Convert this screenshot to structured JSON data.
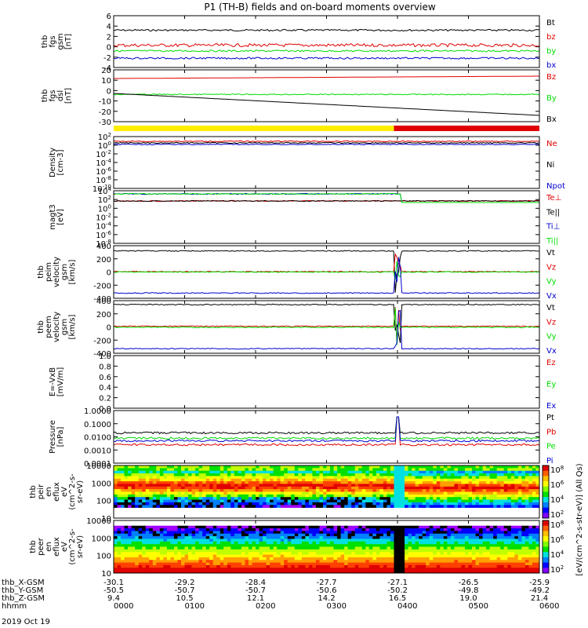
{
  "title": "P1 (TH-B) fields and on-board moments overview",
  "colors": {
    "black": "#000000",
    "red": "#e00000",
    "green": "#00dd00",
    "blue": "#0000cc",
    "yellow": "#ffee00",
    "cyan": "#00c8c8",
    "white": "#ffffff"
  },
  "colorbar": {
    "label": "[eV/(cm^2-s-str-eV)] (All Qs)",
    "ticks_top": [
      "10^8",
      "10^6",
      "10^4",
      "10^2"
    ],
    "ticks_bottom": [
      "10^8",
      "10^6",
      "10^4",
      "10^2"
    ]
  },
  "mode_bar": {
    "yellow_until_hour": 3.95
  },
  "chart_data": [
    {
      "type": "line",
      "id": "fgs",
      "ylabel": [
        "thb",
        "fgs",
        "gsm",
        "[nT]"
      ],
      "yticks": [
        "6",
        "4",
        "2",
        "0",
        "-2",
        "-4"
      ],
      "ylim": [
        -4,
        6
      ],
      "series": [
        {
          "name": "Bt",
          "color": "#000000",
          "level": 3.2
        },
        {
          "name": "bz",
          "color": "#e00000",
          "level": 0.3
        },
        {
          "name": "by",
          "color": "#00dd00",
          "level": -0.8
        },
        {
          "name": "bx",
          "color": "#0000cc",
          "level": -2.2
        }
      ]
    },
    {
      "type": "line",
      "id": "fgs-dsl",
      "ylabel": [
        "thb",
        "fgs",
        "dsl",
        "[nT]"
      ],
      "yticks": [
        "20",
        "10",
        "0",
        "-10",
        "-20",
        "-30"
      ],
      "ylim": [
        -35,
        22
      ],
      "series": [
        {
          "name": "Bz",
          "color": "#e00000",
          "level": 15
        },
        {
          "name": "By",
          "color": "#00dd00",
          "level": -5
        },
        {
          "name": "Bx",
          "color": "#000000",
          "level": -13
        }
      ]
    },
    {
      "type": "line",
      "id": "density",
      "ylabel": [
        "Density",
        "[cm-3]"
      ],
      "yticks": [
        "10^2",
        "10^0",
        "10^-2",
        "10^-4",
        "10^-6",
        "10^-8",
        "10^-10"
      ],
      "log": true,
      "series": [
        {
          "name": "Ne",
          "color": "#e00000"
        },
        {
          "name": "Ni",
          "color": "#000000"
        },
        {
          "name": "Npot",
          "color": "#0000cc"
        }
      ]
    },
    {
      "type": "line",
      "id": "temperature",
      "ylabel": [
        "magt3",
        "[eV]"
      ],
      "yticks": [
        "10^4",
        "10^2",
        "10^0",
        "10^-2",
        "10^-4",
        "10^-6",
        "10^-8"
      ],
      "log": true,
      "series": [
        {
          "name": "Te⊥",
          "color": "#e00000"
        },
        {
          "name": "Te||",
          "color": "#000000"
        },
        {
          "name": "Ti⊥",
          "color": "#0000cc"
        },
        {
          "name": "Ti||",
          "color": "#00dd00"
        }
      ]
    },
    {
      "type": "line",
      "id": "peim-velocity",
      "ylabel": [
        "thb",
        "peim",
        "velocity",
        "gsm",
        "[km/s]"
      ],
      "yticks": [
        "400",
        "200",
        "0",
        "-200",
        "-400"
      ],
      "ylim": [
        -400,
        400
      ],
      "series": [
        {
          "name": "Vt",
          "color": "#000000",
          "level": 320
        },
        {
          "name": "Vz",
          "color": "#e00000",
          "level": 5
        },
        {
          "name": "Vy",
          "color": "#00dd00",
          "level": 0
        },
        {
          "name": "Vx",
          "color": "#0000cc",
          "level": -320
        }
      ]
    },
    {
      "type": "line",
      "id": "peem-velocity",
      "ylabel": [
        "thb",
        "peem",
        "velocity",
        "gsm",
        "[km/s]"
      ],
      "yticks": [
        "400",
        "200",
        "0",
        "-200",
        "-400"
      ],
      "ylim": [
        -400,
        400
      ],
      "series": [
        {
          "name": "Vt",
          "color": "#000000",
          "level": 340
        },
        {
          "name": "Vz",
          "color": "#e00000",
          "level": 10
        },
        {
          "name": "Vy",
          "color": "#00dd00",
          "level": -5
        },
        {
          "name": "Vx",
          "color": "#0000cc",
          "level": -330
        }
      ]
    },
    {
      "type": "line",
      "id": "efield",
      "ylabel": [
        "E=-VxB",
        "[mV/m]"
      ],
      "yticks": [
        "1.0",
        "0.8",
        "0.6",
        "0.4",
        "0.2",
        "0.0"
      ],
      "ylim": [
        0,
        1
      ],
      "series": [
        {
          "name": "Ez",
          "color": "#e00000"
        },
        {
          "name": "Ey",
          "color": "#00dd00"
        },
        {
          "name": "Ex",
          "color": "#0000cc"
        }
      ]
    },
    {
      "type": "line",
      "id": "pressure",
      "ylabel": [
        "Pressure",
        "[nPa]"
      ],
      "yticks": [
        "1.0000",
        "0.1000",
        "0.0100",
        "0.0010",
        "0.0001"
      ],
      "log": true,
      "series": [
        {
          "name": "Pt",
          "color": "#000000",
          "level": 0.02
        },
        {
          "name": "Pb",
          "color": "#e00000",
          "level": 0.0025
        },
        {
          "name": "Pe",
          "color": "#00dd00",
          "level": 0.008
        },
        {
          "name": "Pi",
          "color": "#0000cc",
          "level": 0.005
        }
      ]
    },
    {
      "type": "heatmap",
      "id": "peir-spectrum",
      "ylabel": [
        "thb",
        "peir",
        "en",
        "eflux",
        "eV",
        "(cm^2-s-",
        "sr-eV)"
      ],
      "yticks": [
        "10000",
        "1000",
        "100",
        "10"
      ]
    },
    {
      "type": "heatmap",
      "id": "peer-spectrum",
      "ylabel": [
        "thb",
        "peer",
        "en",
        "eflux",
        "eV",
        "(cm^2-s-",
        "sr-eV)"
      ],
      "yticks": [
        "10000",
        "1000",
        "100",
        "10"
      ]
    }
  ],
  "x_axis": {
    "rows": [
      {
        "label": "thb_X-GSM",
        "values": [
          "-30.1",
          "-29.2",
          "-28.4",
          "-27.7",
          "-27.1",
          "-26.5",
          "-25.9"
        ]
      },
      {
        "label": "thb_Y-GSM",
        "values": [
          "-50.5",
          "-50.7",
          "-50.7",
          "-50.6",
          "-50.2",
          "-49.8",
          "-49.2"
        ]
      },
      {
        "label": "thb_Z-GSM",
        "values": [
          "9.4",
          "10.5",
          "12.1",
          "14.2",
          "16.5",
          "19.0",
          "21.4"
        ]
      },
      {
        "label": "hhmm",
        "values": [
          "0000",
          "0100",
          "0200",
          "0300",
          "0400",
          "0500",
          "0600"
        ]
      }
    ],
    "date": "2019 Oct 19"
  }
}
